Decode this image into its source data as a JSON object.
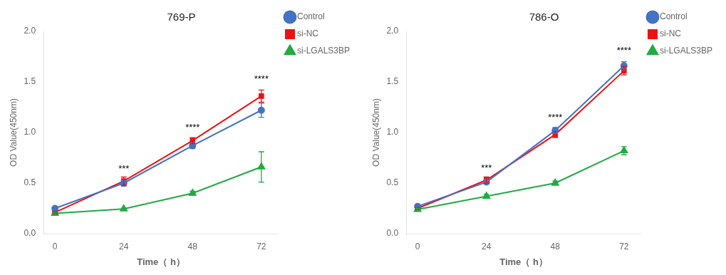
{
  "chart_data": [
    {
      "type": "line",
      "title": "769-P",
      "x": [
        0,
        24,
        48,
        72
      ],
      "series": [
        {
          "name": "Control",
          "color": "#4472C4",
          "marker": "circle",
          "values": [
            0.25,
            0.5,
            0.87,
            1.22
          ],
          "errors": [
            0.01,
            0.03,
            0.03,
            0.07
          ]
        },
        {
          "name": "si-NC",
          "color": "#EE1111",
          "marker": "square",
          "values": [
            0.21,
            0.52,
            0.92,
            1.36
          ],
          "errors": [
            0.01,
            0.04,
            0.03,
            0.06
          ]
        },
        {
          "name": "si-LGALS3BP",
          "color": "#22AA44",
          "marker": "triangle",
          "values": [
            0.2,
            0.245,
            0.4,
            0.66
          ],
          "errors": [
            0.01,
            0.01,
            0.02,
            0.15
          ]
        }
      ],
      "annotations": [
        {
          "x": 24,
          "y": 0.595,
          "text": "***"
        },
        {
          "x": 48,
          "y": 1.0,
          "text": "****"
        },
        {
          "x": 72,
          "y": 1.48,
          "text": "****"
        }
      ],
      "xlabel": "Time（ h）",
      "ylabel": "OD Value(450nm)",
      "xlim": [
        -4,
        78
      ],
      "xticks": [
        0,
        24,
        48,
        72
      ],
      "ylim": [
        0.0,
        2.0
      ],
      "yticks": [
        0.0,
        0.5,
        1.0,
        1.5,
        2.0
      ],
      "grid": false,
      "legend": "right"
    },
    {
      "type": "line",
      "title": "786-O",
      "x": [
        0,
        24,
        48,
        72
      ],
      "series": [
        {
          "name": "Control",
          "color": "#4472C4",
          "marker": "circle",
          "values": [
            0.27,
            0.51,
            1.02,
            1.66
          ],
          "errors": [
            0.01,
            0.02,
            0.03,
            0.04
          ]
        },
        {
          "name": "si-NC",
          "color": "#EE1111",
          "marker": "square",
          "values": [
            0.25,
            0.53,
            0.98,
            1.61
          ],
          "errors": [
            0.01,
            0.03,
            0.03,
            0.04
          ]
        },
        {
          "name": "si-LGALS3BP",
          "color": "#22AA44",
          "marker": "triangle",
          "values": [
            0.24,
            0.37,
            0.5,
            0.82
          ],
          "errors": [
            0.01,
            0.02,
            0.02,
            0.04
          ]
        }
      ],
      "annotations": [
        {
          "x": 24,
          "y": 0.6,
          "text": "***"
        },
        {
          "x": 48,
          "y": 1.1,
          "text": "****"
        },
        {
          "x": 72,
          "y": 1.76,
          "text": "****"
        }
      ],
      "xlabel": "Time（ h）",
      "ylabel": "OD Value(450nm)",
      "xlim": [
        -4,
        78
      ],
      "xticks": [
        0,
        24,
        48,
        72
      ],
      "ylim": [
        0.0,
        2.0
      ],
      "yticks": [
        0.0,
        0.5,
        1.0,
        1.5,
        2.0
      ],
      "grid": false,
      "legend": "right"
    }
  ]
}
